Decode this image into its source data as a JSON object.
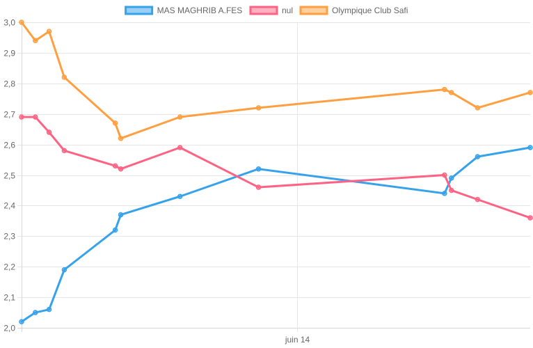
{
  "chart_data": {
    "type": "line",
    "title": "",
    "xlabel": "",
    "ylabel": "",
    "ylim": [
      2.0,
      3.0
    ],
    "y_ticks": [
      "2,0",
      "2,1",
      "2,2",
      "2,3",
      "2,4",
      "2,5",
      "2,6",
      "2,7",
      "2,8",
      "2,9",
      "3,0"
    ],
    "x_ticks": [
      {
        "label": "juin 14",
        "x": 10.0
      }
    ],
    "xlim": [
      0,
      18.46
    ],
    "grid": true,
    "legend_position": "top-center",
    "series": [
      {
        "name": "MAS MAGHRIB A.FES",
        "color": "#36a2eb",
        "points": [
          [
            0,
            2.02
          ],
          [
            0.5,
            2.05
          ],
          [
            1.0,
            2.06
          ],
          [
            1.55,
            2.19
          ],
          [
            3.4,
            2.32
          ],
          [
            3.6,
            2.37
          ],
          [
            5.75,
            2.43
          ],
          [
            8.6,
            2.52
          ],
          [
            15.35,
            2.44
          ],
          [
            15.6,
            2.49
          ],
          [
            16.55,
            2.56
          ],
          [
            18.46,
            2.59
          ]
        ]
      },
      {
        "name": "nul",
        "color": "#ff6384",
        "points": [
          [
            0,
            2.69
          ],
          [
            0.5,
            2.69
          ],
          [
            1.0,
            2.64
          ],
          [
            1.55,
            2.58
          ],
          [
            3.4,
            2.53
          ],
          [
            3.6,
            2.52
          ],
          [
            5.75,
            2.59
          ],
          [
            8.6,
            2.46
          ],
          [
            15.35,
            2.5
          ],
          [
            15.6,
            2.45
          ],
          [
            16.55,
            2.42
          ],
          [
            18.46,
            2.36
          ]
        ]
      },
      {
        "name": "Olympique Club Safi",
        "color": "#ff9f40",
        "points": [
          [
            0,
            3.0
          ],
          [
            0.5,
            2.94
          ],
          [
            1.0,
            2.97
          ],
          [
            1.55,
            2.82
          ],
          [
            3.4,
            2.67
          ],
          [
            3.6,
            2.62
          ],
          [
            5.75,
            2.69
          ],
          [
            8.6,
            2.72
          ],
          [
            15.35,
            2.78
          ],
          [
            15.6,
            2.77
          ],
          [
            16.55,
            2.72
          ],
          [
            18.46,
            2.77
          ]
        ]
      }
    ]
  }
}
